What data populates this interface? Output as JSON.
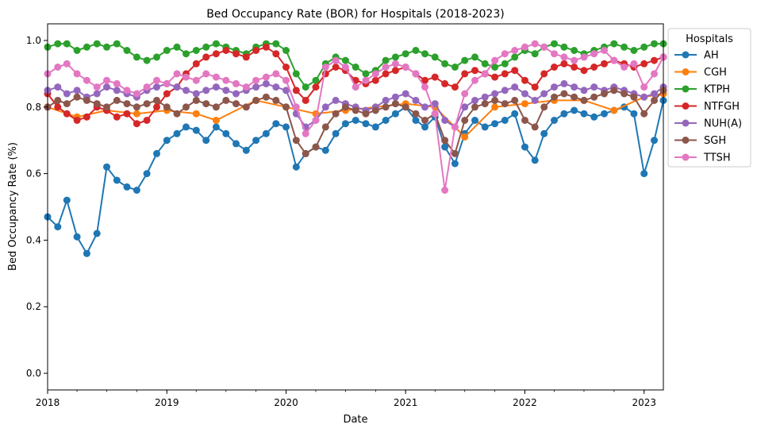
{
  "chart_data": {
    "type": "line",
    "title": "Bed Occupancy Rate (BOR) for Hospitals (2018-2023)",
    "xlabel": "Date",
    "ylabel": "Bed Occupancy Rate (%)",
    "x_axis_kind": "date",
    "xlim": [
      "2018-01-01",
      "2023-03-01"
    ],
    "ylim": [
      -0.05,
      1.05
    ],
    "xticks": [
      {
        "date": "2018-01-01",
        "label": "2018"
      },
      {
        "date": "2019-01-01",
        "label": "2019"
      },
      {
        "date": "2020-01-01",
        "label": "2020"
      },
      {
        "date": "2021-01-01",
        "label": "2021"
      },
      {
        "date": "2022-01-01",
        "label": "2022"
      },
      {
        "date": "2023-01-01",
        "label": "2023"
      }
    ],
    "yticks": [
      {
        "value": 0.0,
        "label": "0.0"
      },
      {
        "value": 0.2,
        "label": "0.2"
      },
      {
        "value": 0.4,
        "label": "0.4"
      },
      {
        "value": 0.6,
        "label": "0.6"
      },
      {
        "value": 0.8,
        "label": "0.8"
      },
      {
        "value": 1.0,
        "label": "1.0"
      }
    ],
    "grid": false,
    "marker": "circle",
    "legend": {
      "title": "Hospitals",
      "position": "outside-upper-right"
    },
    "series": [
      {
        "name": "AH",
        "color": "#1f77b4",
        "x": [
          "2018-01-01",
          "2018-02-01",
          "2018-03-01",
          "2018-04-01",
          "2018-05-01",
          "2018-06-01",
          "2018-07-01",
          "2018-08-01",
          "2018-09-01",
          "2018-10-01",
          "2018-11-01",
          "2018-12-01",
          "2019-01-01",
          "2019-02-01",
          "2019-03-01",
          "2019-04-01",
          "2019-05-01",
          "2019-06-01",
          "2019-07-01",
          "2019-08-01",
          "2019-09-01",
          "2019-10-01",
          "2019-11-01",
          "2019-12-01",
          "2020-01-01",
          "2020-02-01",
          "2020-03-01",
          "2020-04-01",
          "2020-05-01",
          "2020-06-01",
          "2020-07-01",
          "2020-08-01",
          "2020-09-01",
          "2020-10-01",
          "2020-11-01",
          "2020-12-01",
          "2021-01-01",
          "2021-02-01",
          "2021-03-01",
          "2021-04-01",
          "2021-05-01",
          "2021-06-01",
          "2021-07-01",
          "2021-08-01",
          "2021-09-01",
          "2021-10-01",
          "2021-11-01",
          "2021-12-01",
          "2022-01-01",
          "2022-02-01",
          "2022-03-01",
          "2022-04-01",
          "2022-05-01",
          "2022-06-01",
          "2022-07-01",
          "2022-08-01",
          "2022-09-01",
          "2022-10-01",
          "2022-11-01",
          "2022-12-01",
          "2023-01-01",
          "2023-02-01",
          "2023-03-01"
        ],
        "values": [
          0.47,
          0.44,
          0.52,
          0.41,
          0.36,
          0.42,
          0.62,
          0.58,
          0.56,
          0.55,
          0.6,
          0.66,
          0.7,
          0.72,
          0.74,
          0.73,
          0.7,
          0.74,
          0.72,
          0.69,
          0.67,
          0.7,
          0.72,
          0.75,
          0.74,
          0.62,
          0.66,
          0.68,
          0.67,
          0.72,
          0.75,
          0.76,
          0.75,
          0.74,
          0.76,
          0.78,
          0.8,
          0.76,
          0.74,
          0.77,
          0.68,
          0.63,
          0.72,
          0.76,
          0.74,
          0.75,
          0.76,
          0.78,
          0.68,
          0.64,
          0.72,
          0.76,
          0.78,
          0.79,
          0.78,
          0.77,
          0.78,
          0.79,
          0.8,
          0.78,
          0.6,
          0.7,
          0.82
        ]
      },
      {
        "name": "CGH",
        "color": "#ff7f0e",
        "x": [
          "2018-01-01",
          "2018-04-01",
          "2018-07-01",
          "2018-10-01",
          "2019-01-01",
          "2019-04-01",
          "2019-06-01",
          "2019-10-01",
          "2020-01-01",
          "2020-04-01",
          "2020-07-01",
          "2020-10-01",
          "2021-01-01",
          "2021-04-01",
          "2021-07-01",
          "2021-10-01",
          "2022-01-01",
          "2022-04-01",
          "2022-07-01",
          "2022-10-01",
          "2023-01-01",
          "2023-03-01"
        ],
        "values": [
          0.8,
          0.77,
          0.79,
          0.78,
          0.79,
          0.78,
          0.76,
          0.82,
          0.8,
          0.78,
          0.79,
          0.8,
          0.81,
          0.8,
          0.71,
          0.8,
          0.81,
          0.82,
          0.82,
          0.79,
          0.83,
          0.84
        ]
      },
      {
        "name": "KTPH",
        "color": "#2ca02c",
        "x": [
          "2018-01-01",
          "2018-02-01",
          "2018-03-01",
          "2018-04-01",
          "2018-05-01",
          "2018-06-01",
          "2018-07-01",
          "2018-08-01",
          "2018-09-01",
          "2018-10-01",
          "2018-11-01",
          "2018-12-01",
          "2019-01-01",
          "2019-02-01",
          "2019-03-01",
          "2019-04-01",
          "2019-05-01",
          "2019-06-01",
          "2019-07-01",
          "2019-08-01",
          "2019-09-01",
          "2019-10-01",
          "2019-11-01",
          "2019-12-01",
          "2020-01-01",
          "2020-02-01",
          "2020-03-01",
          "2020-04-01",
          "2020-05-01",
          "2020-06-01",
          "2020-07-01",
          "2020-08-01",
          "2020-09-01",
          "2020-10-01",
          "2020-11-01",
          "2020-12-01",
          "2021-01-01",
          "2021-02-01",
          "2021-03-01",
          "2021-04-01",
          "2021-05-01",
          "2021-06-01",
          "2021-07-01",
          "2021-08-01",
          "2021-09-01",
          "2021-10-01",
          "2021-11-01",
          "2021-12-01",
          "2022-01-01",
          "2022-02-01",
          "2022-03-01",
          "2022-04-01",
          "2022-05-01",
          "2022-06-01",
          "2022-07-01",
          "2022-08-01",
          "2022-09-01",
          "2022-10-01",
          "2022-11-01",
          "2022-12-01",
          "2023-01-01",
          "2023-02-01",
          "2023-03-01"
        ],
        "values": [
          0.98,
          0.99,
          0.99,
          0.97,
          0.98,
          0.99,
          0.98,
          0.99,
          0.97,
          0.95,
          0.94,
          0.95,
          0.97,
          0.98,
          0.96,
          0.97,
          0.98,
          0.99,
          0.98,
          0.97,
          0.96,
          0.98,
          0.99,
          0.99,
          0.97,
          0.9,
          0.86,
          0.88,
          0.93,
          0.95,
          0.94,
          0.92,
          0.9,
          0.91,
          0.94,
          0.95,
          0.96,
          0.97,
          0.96,
          0.95,
          0.93,
          0.92,
          0.94,
          0.95,
          0.93,
          0.92,
          0.93,
          0.95,
          0.97,
          0.96,
          0.98,
          0.99,
          0.98,
          0.97,
          0.96,
          0.97,
          0.98,
          0.99,
          0.98,
          0.97,
          0.98,
          0.99,
          0.99
        ]
      },
      {
        "name": "NTFGH",
        "color": "#d62728",
        "x": [
          "2018-01-01",
          "2018-02-01",
          "2018-03-01",
          "2018-04-01",
          "2018-05-01",
          "2018-06-01",
          "2018-07-01",
          "2018-08-01",
          "2018-09-01",
          "2018-10-01",
          "2018-11-01",
          "2018-12-01",
          "2019-01-01",
          "2019-02-01",
          "2019-03-01",
          "2019-04-01",
          "2019-05-01",
          "2019-06-01",
          "2019-07-01",
          "2019-08-01",
          "2019-09-01",
          "2019-10-01",
          "2019-11-01",
          "2019-12-01",
          "2020-01-01",
          "2020-02-01",
          "2020-03-01",
          "2020-04-01",
          "2020-05-01",
          "2020-06-01",
          "2020-07-01",
          "2020-08-01",
          "2020-09-01",
          "2020-10-01",
          "2020-11-01",
          "2020-12-01",
          "2021-01-01",
          "2021-02-01",
          "2021-03-01",
          "2021-04-01",
          "2021-05-01",
          "2021-06-01",
          "2021-07-01",
          "2021-08-01",
          "2021-09-01",
          "2021-10-01",
          "2021-11-01",
          "2021-12-01",
          "2022-01-01",
          "2022-02-01",
          "2022-03-01",
          "2022-04-01",
          "2022-05-01",
          "2022-06-01",
          "2022-07-01",
          "2022-08-01",
          "2022-09-01",
          "2022-10-01",
          "2022-11-01",
          "2022-12-01",
          "2023-01-01",
          "2023-02-01",
          "2023-03-01"
        ],
        "values": [
          0.84,
          0.8,
          0.78,
          0.76,
          0.77,
          0.8,
          0.79,
          0.77,
          0.78,
          0.75,
          0.76,
          0.8,
          0.84,
          0.86,
          0.9,
          0.93,
          0.95,
          0.96,
          0.97,
          0.96,
          0.95,
          0.97,
          0.98,
          0.96,
          0.92,
          0.85,
          0.82,
          0.86,
          0.9,
          0.92,
          0.91,
          0.88,
          0.87,
          0.88,
          0.9,
          0.91,
          0.92,
          0.9,
          0.88,
          0.89,
          0.87,
          0.86,
          0.9,
          0.91,
          0.9,
          0.89,
          0.9,
          0.91,
          0.88,
          0.86,
          0.9,
          0.92,
          0.93,
          0.92,
          0.91,
          0.92,
          0.93,
          0.94,
          0.93,
          0.92,
          0.93,
          0.94,
          0.95
        ]
      },
      {
        "name": "NUH(A)",
        "color": "#9467bd",
        "x": [
          "2018-01-01",
          "2018-02-01",
          "2018-03-01",
          "2018-04-01",
          "2018-05-01",
          "2018-06-01",
          "2018-07-01",
          "2018-08-01",
          "2018-09-01",
          "2018-10-01",
          "2018-11-01",
          "2018-12-01",
          "2019-01-01",
          "2019-02-01",
          "2019-03-01",
          "2019-04-01",
          "2019-05-01",
          "2019-06-01",
          "2019-07-01",
          "2019-08-01",
          "2019-09-01",
          "2019-10-01",
          "2019-11-01",
          "2019-12-01",
          "2020-01-01",
          "2020-02-01",
          "2020-03-01",
          "2020-04-01",
          "2020-05-01",
          "2020-06-01",
          "2020-07-01",
          "2020-08-01",
          "2020-09-01",
          "2020-10-01",
          "2020-11-01",
          "2020-12-01",
          "2021-01-01",
          "2021-02-01",
          "2021-03-01",
          "2021-04-01",
          "2021-05-01",
          "2021-06-01",
          "2021-07-01",
          "2021-08-01",
          "2021-09-01",
          "2021-10-01",
          "2021-11-01",
          "2021-12-01",
          "2022-01-01",
          "2022-02-01",
          "2022-03-01",
          "2022-04-01",
          "2022-05-01",
          "2022-06-01",
          "2022-07-01",
          "2022-08-01",
          "2022-09-01",
          "2022-10-01",
          "2022-11-01",
          "2022-12-01",
          "2023-01-01",
          "2023-02-01",
          "2023-03-01"
        ],
        "values": [
          0.85,
          0.86,
          0.84,
          0.85,
          0.83,
          0.84,
          0.86,
          0.85,
          0.84,
          0.83,
          0.85,
          0.86,
          0.87,
          0.86,
          0.85,
          0.84,
          0.85,
          0.86,
          0.85,
          0.84,
          0.85,
          0.86,
          0.87,
          0.86,
          0.85,
          0.78,
          0.74,
          0.76,
          0.8,
          0.82,
          0.81,
          0.8,
          0.79,
          0.8,
          0.82,
          0.83,
          0.84,
          0.82,
          0.8,
          0.81,
          0.76,
          0.74,
          0.8,
          0.82,
          0.83,
          0.84,
          0.85,
          0.86,
          0.84,
          0.82,
          0.84,
          0.86,
          0.87,
          0.86,
          0.85,
          0.86,
          0.85,
          0.86,
          0.85,
          0.84,
          0.83,
          0.84,
          0.86
        ]
      },
      {
        "name": "SGH",
        "color": "#8c564b",
        "x": [
          "2018-01-01",
          "2018-02-01",
          "2018-03-01",
          "2018-04-01",
          "2018-05-01",
          "2018-06-01",
          "2018-07-01",
          "2018-08-01",
          "2018-09-01",
          "2018-10-01",
          "2018-11-01",
          "2018-12-01",
          "2019-01-01",
          "2019-02-01",
          "2019-03-01",
          "2019-04-01",
          "2019-05-01",
          "2019-06-01",
          "2019-07-01",
          "2019-08-01",
          "2019-09-01",
          "2019-10-01",
          "2019-11-01",
          "2019-12-01",
          "2020-01-01",
          "2020-02-01",
          "2020-03-01",
          "2020-04-01",
          "2020-05-01",
          "2020-06-01",
          "2020-07-01",
          "2020-08-01",
          "2020-09-01",
          "2020-10-01",
          "2020-11-01",
          "2020-12-01",
          "2021-01-01",
          "2021-02-01",
          "2021-03-01",
          "2021-04-01",
          "2021-05-01",
          "2021-06-01",
          "2021-07-01",
          "2021-08-01",
          "2021-09-01",
          "2021-10-01",
          "2021-11-01",
          "2021-12-01",
          "2022-01-01",
          "2022-02-01",
          "2022-03-01",
          "2022-04-01",
          "2022-05-01",
          "2022-06-01",
          "2022-07-01",
          "2022-08-01",
          "2022-09-01",
          "2022-10-01",
          "2022-11-01",
          "2022-12-01",
          "2023-01-01",
          "2023-02-01",
          "2023-03-01"
        ],
        "values": [
          0.8,
          0.82,
          0.81,
          0.83,
          0.82,
          0.81,
          0.8,
          0.82,
          0.81,
          0.8,
          0.81,
          0.82,
          0.8,
          0.78,
          0.8,
          0.82,
          0.81,
          0.8,
          0.82,
          0.81,
          0.8,
          0.82,
          0.83,
          0.82,
          0.8,
          0.7,
          0.66,
          0.68,
          0.74,
          0.78,
          0.8,
          0.79,
          0.78,
          0.79,
          0.8,
          0.81,
          0.8,
          0.78,
          0.76,
          0.78,
          0.7,
          0.66,
          0.76,
          0.8,
          0.81,
          0.82,
          0.81,
          0.82,
          0.76,
          0.74,
          0.8,
          0.83,
          0.84,
          0.83,
          0.82,
          0.83,
          0.84,
          0.85,
          0.84,
          0.83,
          0.78,
          0.82,
          0.85
        ]
      },
      {
        "name": "TTSH",
        "color": "#e377c2",
        "x": [
          "2018-01-01",
          "2018-02-01",
          "2018-03-01",
          "2018-04-01",
          "2018-05-01",
          "2018-06-01",
          "2018-07-01",
          "2018-08-01",
          "2018-09-01",
          "2018-10-01",
          "2018-11-01",
          "2018-12-01",
          "2019-01-01",
          "2019-02-01",
          "2019-03-01",
          "2019-04-01",
          "2019-05-01",
          "2019-06-01",
          "2019-07-01",
          "2019-08-01",
          "2019-09-01",
          "2019-10-01",
          "2019-11-01",
          "2019-12-01",
          "2020-01-01",
          "2020-02-01",
          "2020-03-01",
          "2020-04-01",
          "2020-05-01",
          "2020-06-01",
          "2020-07-01",
          "2020-08-01",
          "2020-09-01",
          "2020-10-01",
          "2020-11-01",
          "2020-12-01",
          "2021-01-01",
          "2021-02-01",
          "2021-03-01",
          "2021-04-01",
          "2021-05-01",
          "2021-06-01",
          "2021-07-01",
          "2021-08-01",
          "2021-09-01",
          "2021-10-01",
          "2021-11-01",
          "2021-12-01",
          "2022-01-01",
          "2022-02-01",
          "2022-03-01",
          "2022-04-01",
          "2022-05-01",
          "2022-06-01",
          "2022-07-01",
          "2022-08-01",
          "2022-09-01",
          "2022-10-01",
          "2022-11-01",
          "2022-12-01",
          "2023-01-01",
          "2023-02-01",
          "2023-03-01"
        ],
        "values": [
          0.9,
          0.92,
          0.93,
          0.9,
          0.88,
          0.86,
          0.88,
          0.87,
          0.85,
          0.84,
          0.86,
          0.88,
          0.87,
          0.9,
          0.89,
          0.88,
          0.9,
          0.89,
          0.88,
          0.87,
          0.86,
          0.88,
          0.89,
          0.9,
          0.88,
          0.8,
          0.72,
          0.76,
          0.92,
          0.94,
          0.92,
          0.86,
          0.88,
          0.9,
          0.92,
          0.93,
          0.92,
          0.9,
          0.86,
          0.78,
          0.55,
          0.74,
          0.84,
          0.88,
          0.9,
          0.94,
          0.96,
          0.97,
          0.98,
          0.99,
          0.98,
          0.96,
          0.95,
          0.94,
          0.95,
          0.96,
          0.97,
          0.94,
          0.92,
          0.93,
          0.86,
          0.9,
          0.95
        ]
      }
    ]
  }
}
